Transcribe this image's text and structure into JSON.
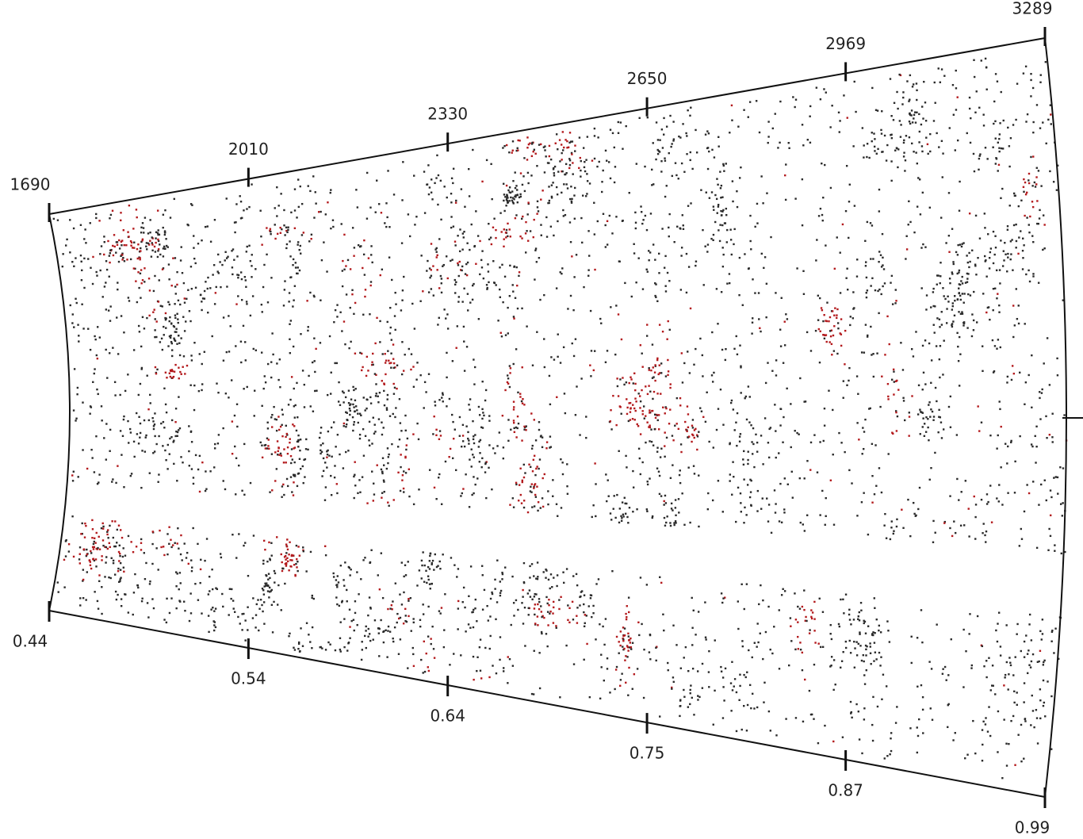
{
  "chart_data": {
    "type": "wedge",
    "xlim": [
      1690,
      3289
    ],
    "xticks": [
      1690,
      2010,
      2330,
      2650,
      2969,
      3289
    ],
    "x2ticks": [
      0.44,
      0.54,
      0.64,
      0.75,
      0.87,
      0.99
    ],
    "point_colors": [
      "#2a2a2a",
      "#b3191c"
    ]
  }
}
